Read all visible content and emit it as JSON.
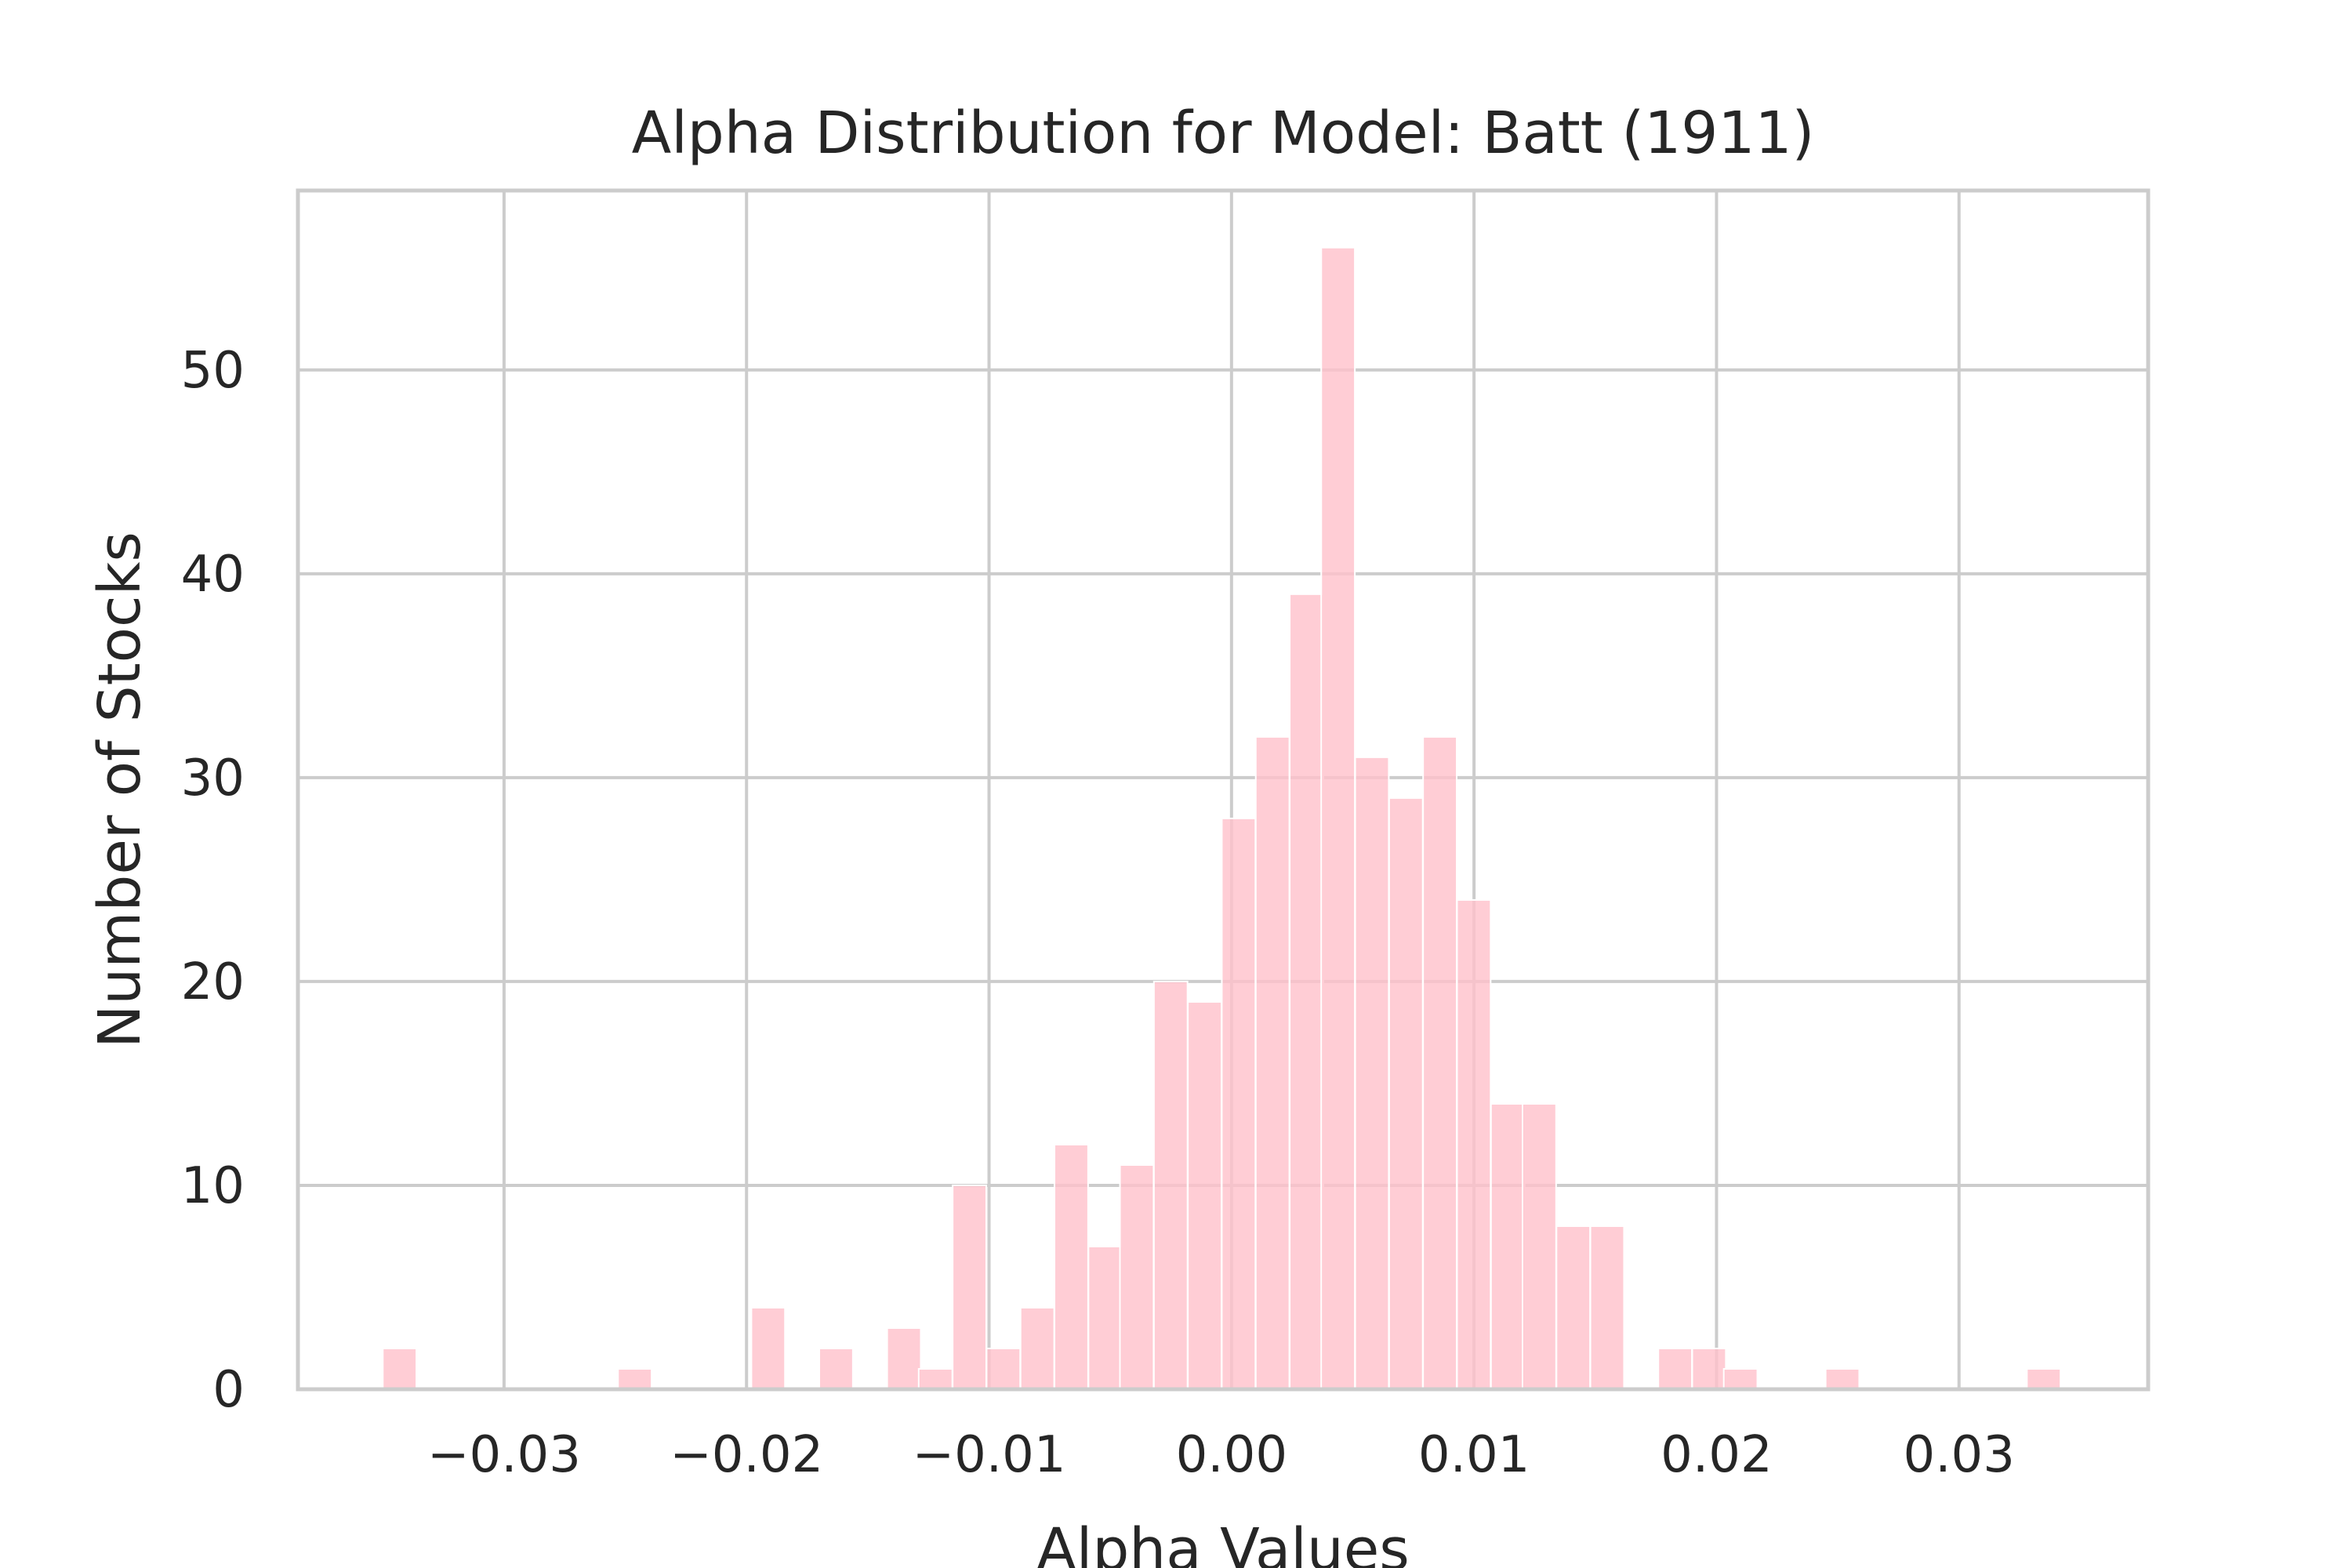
{
  "chart_data": {
    "type": "bar",
    "title": "Alpha Distribution for Model: Batt (1911)",
    "xlabel": "Alpha Values",
    "ylabel": "Number of Stocks",
    "xlim": [
      -0.0385,
      0.0378
    ],
    "ylim": [
      0,
      58.8
    ],
    "grid": true,
    "xticks": [
      -0.03,
      -0.02,
      -0.01,
      0.0,
      0.01,
      0.02,
      0.03
    ],
    "xtick_labels": [
      "−0.03",
      "−0.02",
      "−0.01",
      "0.00",
      "0.01",
      "0.02",
      "0.03"
    ],
    "yticks": [
      0,
      10,
      20,
      30,
      40,
      50
    ],
    "ytick_labels": [
      "0",
      "10",
      "20",
      "30",
      "40",
      "50"
    ],
    "bin_width": 0.001385,
    "color": "#ffc0cb",
    "bins": [
      {
        "x": -0.035,
        "count": 2
      },
      {
        "x": -0.0336,
        "count": 0
      },
      {
        "x": -0.0322,
        "count": 0
      },
      {
        "x": -0.0308,
        "count": 0
      },
      {
        "x": -0.0295,
        "count": 0
      },
      {
        "x": -0.0281,
        "count": 0
      },
      {
        "x": -0.0267,
        "count": 0
      },
      {
        "x": -0.0253,
        "count": 1
      },
      {
        "x": -0.0239,
        "count": 0
      },
      {
        "x": -0.0225,
        "count": 0
      },
      {
        "x": -0.0212,
        "count": 0
      },
      {
        "x": -0.0198,
        "count": 4
      },
      {
        "x": -0.0184,
        "count": 0
      },
      {
        "x": -0.017,
        "count": 2
      },
      {
        "x": -0.0156,
        "count": 0
      },
      {
        "x": -0.0142,
        "count": 3
      },
      {
        "x": -0.0129,
        "count": 1
      },
      {
        "x": -0.0115,
        "count": 10
      },
      {
        "x": -0.0101,
        "count": 2
      },
      {
        "x": -0.0087,
        "count": 4
      },
      {
        "x": -0.0073,
        "count": 12
      },
      {
        "x": -0.0059,
        "count": 7
      },
      {
        "x": -0.0046,
        "count": 11
      },
      {
        "x": -0.0032,
        "count": 20
      },
      {
        "x": -0.0018,
        "count": 19
      },
      {
        "x": -0.0004,
        "count": 28
      },
      {
        "x": 0.001,
        "count": 32
      },
      {
        "x": 0.0024,
        "count": 39
      },
      {
        "x": 0.0037,
        "count": 56
      },
      {
        "x": 0.0051,
        "count": 31
      },
      {
        "x": 0.0065,
        "count": 29
      },
      {
        "x": 0.0079,
        "count": 32
      },
      {
        "x": 0.0093,
        "count": 24
      },
      {
        "x": 0.0107,
        "count": 14
      },
      {
        "x": 0.012,
        "count": 14
      },
      {
        "x": 0.0134,
        "count": 8
      },
      {
        "x": 0.0148,
        "count": 8
      },
      {
        "x": 0.0162,
        "count": 0
      },
      {
        "x": 0.0176,
        "count": 2
      },
      {
        "x": 0.019,
        "count": 2
      },
      {
        "x": 0.0203,
        "count": 1
      },
      {
        "x": 0.0217,
        "count": 0
      },
      {
        "x": 0.0231,
        "count": 0
      },
      {
        "x": 0.0245,
        "count": 1
      },
      {
        "x": 0.0259,
        "count": 0
      },
      {
        "x": 0.0273,
        "count": 0
      },
      {
        "x": 0.0286,
        "count": 0
      },
      {
        "x": 0.03,
        "count": 0
      },
      {
        "x": 0.0314,
        "count": 0
      },
      {
        "x": 0.0328,
        "count": 1
      }
    ]
  }
}
